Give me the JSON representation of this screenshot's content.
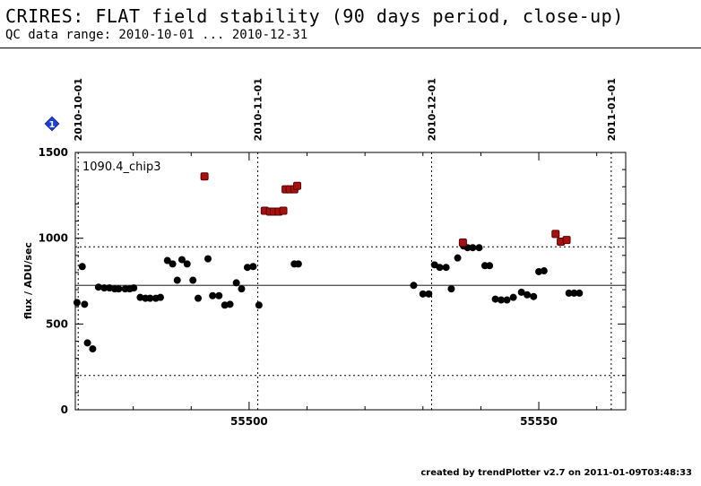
{
  "header": {
    "title": "CRIRES: FLAT field stability (90 days period, close-up)",
    "subtitle": "QC data range: 2010-10-01 ... 2010-12-31"
  },
  "footer": {
    "credit": "created by trendPlotter v2.7 on 2011-01-09T03:48:33"
  },
  "marker": {
    "label": "1",
    "color": "#1a3fd9"
  },
  "chart_data": {
    "type": "scatter",
    "title": "",
    "ylabel": "flux / ADU/sec",
    "xlabel": "",
    "panel_label": "1090.4_chip3",
    "xlim": [
      55470,
      55565
    ],
    "ylim": [
      0,
      1500
    ],
    "x_ticks": [
      55500,
      55550
    ],
    "y_ticks": [
      0,
      500,
      1000,
      1500
    ],
    "date_markers": [
      {
        "label": "2010-10-01",
        "mjd": 55470.5
      },
      {
        "label": "2010-11-01",
        "mjd": 55501.5
      },
      {
        "label": "2010-12-01",
        "mjd": 55531.5
      },
      {
        "label": "2011-01-01",
        "mjd": 55562.5
      }
    ],
    "reference_lines": {
      "median": 725,
      "upper_limit": 950,
      "lower_limit": 200
    },
    "colors": {
      "normal": "#000000",
      "outlier": "#a81010",
      "outlier_edge": "#5a0000"
    },
    "series": [
      {
        "name": "",
        "kind": "normal",
        "points": [
          [
            55470.3,
            625
          ],
          [
            55471.2,
            835
          ],
          [
            55471.6,
            615
          ],
          [
            55472.1,
            390
          ],
          [
            55473.0,
            355
          ],
          [
            55474.0,
            715
          ],
          [
            55475.0,
            710
          ],
          [
            55475.9,
            710
          ],
          [
            55476.8,
            705
          ],
          [
            55477.5,
            705
          ],
          [
            55478.6,
            705
          ],
          [
            55479.4,
            705
          ],
          [
            55480.1,
            710
          ],
          [
            55481.2,
            655
          ],
          [
            55482.1,
            650
          ],
          [
            55482.9,
            650
          ],
          [
            55483.9,
            650
          ],
          [
            55484.7,
            655
          ],
          [
            55485.9,
            870
          ],
          [
            55486.8,
            850
          ],
          [
            55487.6,
            755
          ],
          [
            55488.4,
            875
          ],
          [
            55489.3,
            850
          ],
          [
            55490.3,
            755
          ],
          [
            55491.2,
            650
          ],
          [
            55492.9,
            880
          ],
          [
            55493.7,
            665
          ],
          [
            55494.8,
            665
          ],
          [
            55495.8,
            610
          ],
          [
            55496.7,
            615
          ],
          [
            55497.8,
            740
          ],
          [
            55498.7,
            705
          ],
          [
            55499.7,
            830
          ],
          [
            55500.7,
            835
          ],
          [
            55501.7,
            610
          ],
          [
            55507.8,
            850
          ],
          [
            55508.5,
            850
          ],
          [
            55528.4,
            725
          ],
          [
            55530.0,
            675
          ],
          [
            55531.0,
            675
          ],
          [
            55532.0,
            845
          ],
          [
            55532.9,
            830
          ],
          [
            55534.0,
            830
          ],
          [
            55534.9,
            705
          ],
          [
            55536.0,
            885
          ],
          [
            55537.0,
            955
          ],
          [
            55537.7,
            945
          ],
          [
            55538.6,
            945
          ],
          [
            55539.7,
            945
          ],
          [
            55540.7,
            840
          ],
          [
            55541.5,
            840
          ],
          [
            55542.5,
            645
          ],
          [
            55543.5,
            640
          ],
          [
            55544.5,
            640
          ],
          [
            55545.6,
            655
          ],
          [
            55547.0,
            685
          ],
          [
            55548.0,
            670
          ],
          [
            55549.1,
            660
          ],
          [
            55550.0,
            805
          ],
          [
            55550.9,
            810
          ],
          [
            55555.2,
            680
          ],
          [
            55556.1,
            680
          ],
          [
            55557.0,
            680
          ]
        ]
      },
      {
        "name": "",
        "kind": "outlier",
        "points": [
          [
            55492.3,
            1360
          ],
          [
            55502.7,
            1160
          ],
          [
            55503.6,
            1155
          ],
          [
            55504.3,
            1155
          ],
          [
            55505.1,
            1155
          ],
          [
            55505.9,
            1160
          ],
          [
            55506.3,
            1285
          ],
          [
            55507.0,
            1285
          ],
          [
            55507.8,
            1285
          ],
          [
            55508.3,
            1305
          ],
          [
            55536.9,
            975
          ],
          [
            55552.9,
            1025
          ],
          [
            55553.8,
            980
          ],
          [
            55554.8,
            990
          ]
        ]
      }
    ]
  }
}
